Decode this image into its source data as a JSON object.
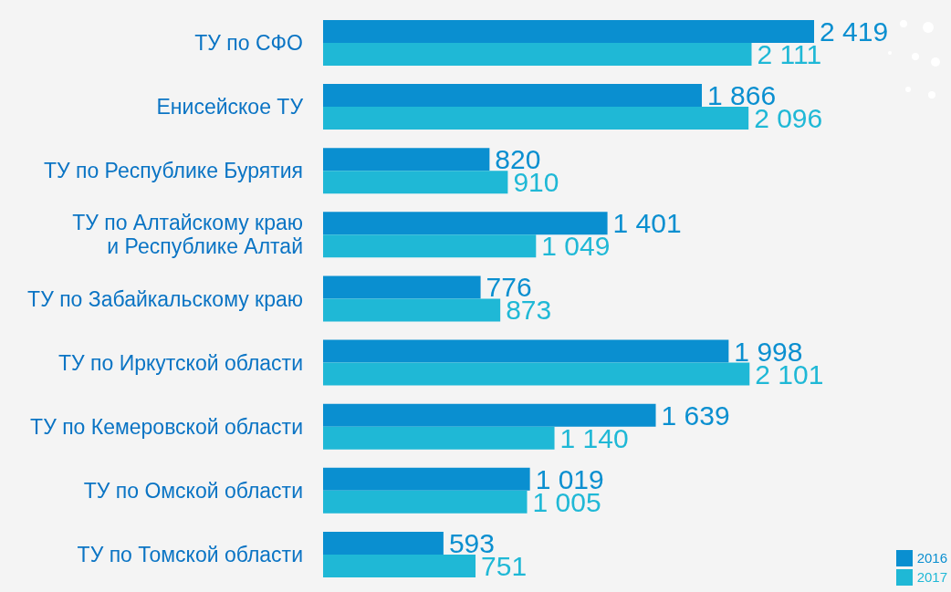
{
  "chart_data": {
    "type": "bar",
    "orientation": "horizontal",
    "categories": [
      "ТУ по СФО",
      "Енисейское ТУ",
      "ТУ по Республике Бурятия",
      "ТУ по Алтайскому краю\nи Республике Алтай",
      "ТУ по Забайкальскому краю",
      "ТУ по Иркутской области",
      "ТУ по Кемеровской области",
      "ТУ по Омской области",
      "ТУ по Томской области"
    ],
    "series": [
      {
        "name": "2016",
        "color": "#0a8fd0",
        "values": [
          2419,
          1866,
          820,
          1401,
          776,
          1998,
          1639,
          1019,
          593
        ],
        "value_labels": [
          "2 419",
          "1 866",
          "820",
          "1 401",
          "776",
          "1 998",
          "1 639",
          "1 019",
          "593"
        ]
      },
      {
        "name": "2017",
        "color": "#1fb8d6",
        "values": [
          2111,
          2096,
          910,
          1049,
          873,
          2101,
          1140,
          1005,
          751
        ],
        "value_labels": [
          "2 111",
          "2 096",
          "910",
          "1 049",
          "873",
          "2 101",
          "1 140",
          "1 005",
          "751"
        ]
      }
    ],
    "legend": "bottom right",
    "grid": false
  }
}
